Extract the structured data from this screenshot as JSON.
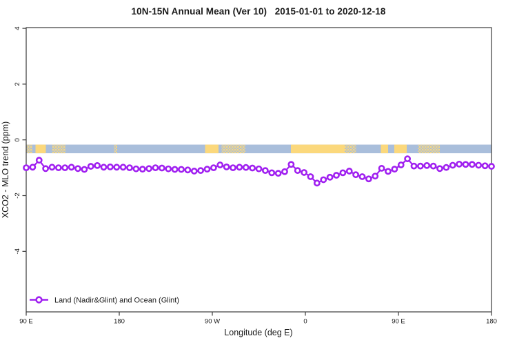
{
  "chart_data": {
    "type": "line",
    "title": "10N-15N Annual Mean (Ver 10)   2015-01-01 to 2020-12-18",
    "xlabel": "Longitude (deg E)",
    "ylabel": "XCO2 - MLO trend (ppm)",
    "grid": false,
    "x_axis": {
      "tick_labels": [
        "90 E",
        "180",
        "90 W",
        "0",
        "90 E",
        "180"
      ],
      "tick_positions_deg": [
        90,
        180,
        270,
        360,
        450,
        540
      ],
      "range_deg": [
        90,
        540
      ],
      "note": "longitude axis starts at 90E and wraps through 180, 90W, 0, 90E to 180"
    },
    "y_axis": {
      "tick_labels": [
        "4",
        "2",
        "0",
        "-2",
        "-4"
      ],
      "tick_values": [
        4,
        2,
        0,
        -2,
        -4
      ],
      "range": [
        4.05,
        -6.2
      ]
    },
    "legend": {
      "position": "bottom-left",
      "entries": [
        {
          "label": "Land (Nadir&Glint) and Ocean (Glint)",
          "color": "#A020F0",
          "marker": "open-circle"
        }
      ]
    },
    "series": [
      {
        "name": "Land (Nadir&Glint) and Ocean (Glint)",
        "color": "#A020F0",
        "marker": "open-circle",
        "x_start_deg": 90,
        "x_step_deg": 6.25,
        "values": [
          -1.0,
          -0.98,
          -0.73,
          -1.03,
          -0.98,
          -1.0,
          -1.0,
          -0.98,
          -1.03,
          -1.06,
          -0.95,
          -0.92,
          -0.98,
          -0.97,
          -0.98,
          -0.98,
          -1.0,
          -1.04,
          -1.05,
          -1.03,
          -1.0,
          -1.01,
          -1.04,
          -1.06,
          -1.06,
          -1.08,
          -1.12,
          -1.1,
          -1.05,
          -1.0,
          -0.9,
          -0.97,
          -1.0,
          -0.98,
          -0.99,
          -1.01,
          -1.04,
          -1.1,
          -1.18,
          -1.2,
          -1.14,
          -0.88,
          -1.1,
          -1.17,
          -1.32,
          -1.55,
          -1.43,
          -1.34,
          -1.27,
          -1.18,
          -1.12,
          -1.25,
          -1.32,
          -1.4,
          -1.3,
          -1.02,
          -1.13,
          -1.05,
          -0.9,
          -0.68,
          -0.94,
          -0.94,
          -0.92,
          -0.94,
          -1.03,
          -0.99,
          -0.91,
          -0.87,
          -0.88,
          -0.88,
          -0.91,
          -0.93,
          -0.95
        ]
      }
    ],
    "land_ocean_band": {
      "description": "map strip near y=0 showing ocean (blue) and land (yellow) along longitude",
      "ocean_color": "#a9bedb",
      "land_color": "#fbd87c",
      "value_top": -0.17,
      "value_bottom": -0.48,
      "land_segments_deg": [
        {
          "start": 90,
          "end": 96,
          "style": "speckle"
        },
        {
          "start": 99,
          "end": 109,
          "style": "solid"
        },
        {
          "start": 115,
          "end": 128,
          "style": "speckle"
        },
        {
          "start": 175,
          "end": 178,
          "style": "speckle"
        },
        {
          "start": 263,
          "end": 276,
          "style": "solid"
        },
        {
          "start": 279,
          "end": 302,
          "style": "speckle"
        },
        {
          "start": 346,
          "end": 398,
          "style": "solid"
        },
        {
          "start": 398,
          "end": 409,
          "style": "speckle"
        },
        {
          "start": 433,
          "end": 440,
          "style": "solid"
        },
        {
          "start": 446,
          "end": 458,
          "style": "solid"
        },
        {
          "start": 469,
          "end": 490,
          "style": "speckle"
        }
      ]
    },
    "frame_color": "#3a3a3a"
  }
}
